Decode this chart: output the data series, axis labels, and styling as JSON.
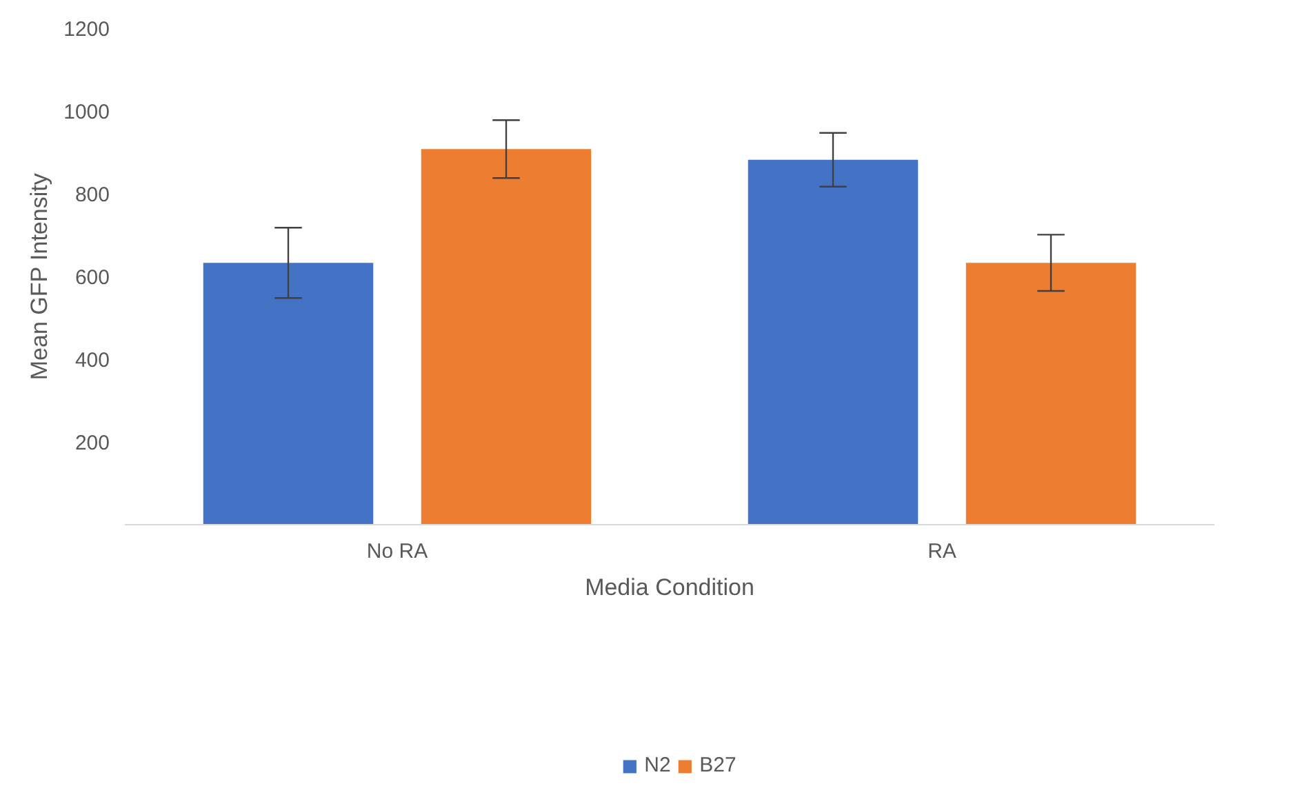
{
  "chart_data": {
    "type": "bar",
    "xlabel": "Media Condition",
    "ylabel": "Mean GFP Intensity",
    "categories": [
      "No RA",
      "RA"
    ],
    "series": [
      {
        "name": "N2",
        "color": "#4472c4",
        "values": [
          633,
          882
        ],
        "errors": [
          85,
          65
        ]
      },
      {
        "name": "B27",
        "color": "#ed7d31",
        "values": [
          908,
          633
        ],
        "errors": [
          70,
          68
        ]
      }
    ],
    "ylim": [
      0,
      1200
    ],
    "yticks": [
      200,
      400,
      600,
      800,
      1000,
      1200
    ],
    "grid": false,
    "legend": "bottom"
  }
}
